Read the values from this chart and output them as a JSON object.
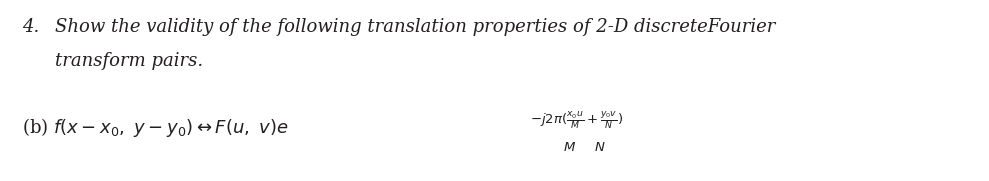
{
  "background_color": "#ffffff",
  "fig_width": 9.89,
  "fig_height": 1.81,
  "dpi": 100,
  "text_color": "#231f20",
  "font_size_main": 13.0,
  "font_size_formula": 13.0,
  "font_size_exp": 9.5,
  "font_size_MN": 9.5
}
